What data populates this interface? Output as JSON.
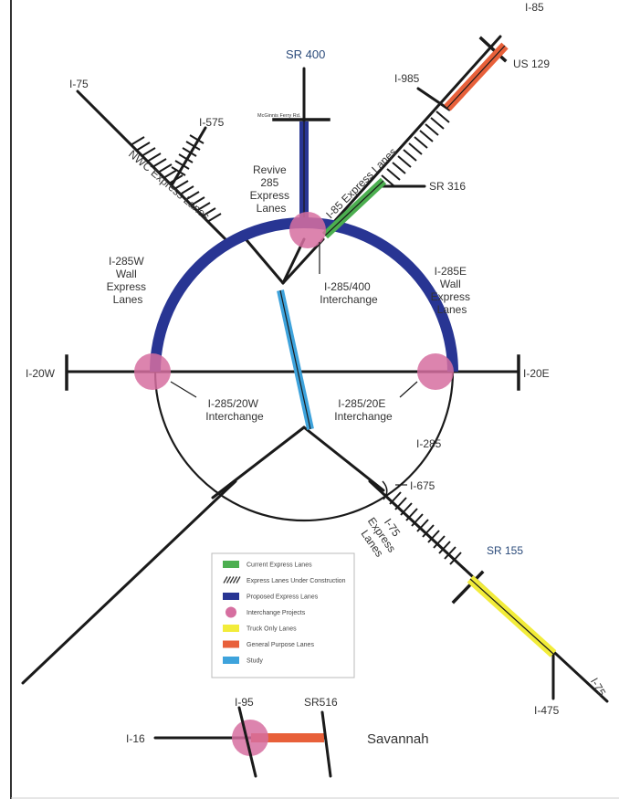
{
  "roads": {
    "i85_top": "I-85",
    "us129": "US 129",
    "i985": "I-985",
    "sr400": "SR 400",
    "mcginnis": "McGinnis Ferry Rd.",
    "i75_nw": "I-75",
    "i575": "I-575",
    "sr316": "SR 316",
    "i20w": "I-20W",
    "i20e": "I-20E",
    "i285": "I-285",
    "i675": "I-675",
    "sr155": "SR 155",
    "i75_se": "I-75",
    "i475": "I-475",
    "i16": "I-16",
    "i95": "I-95",
    "sr516": "SR516",
    "savannah": "Savannah"
  },
  "projects": {
    "nwc_express": "NWC Express Lanes",
    "i85_express": "I-85 Express Lanes",
    "revive_285": [
      "Revive",
      "285",
      "Express",
      "Lanes"
    ],
    "i285w_wall": [
      "I-285W",
      "Wall",
      "Express",
      "Lanes"
    ],
    "i285e_wall": [
      "I-285E",
      "Wall",
      "Express",
      "Lanes"
    ],
    "i285_400": [
      "I-285/400",
      "Interchange"
    ],
    "i285_20w": [
      "I-285/20W",
      "Interchange"
    ],
    "i285_20e": [
      "I-285/20E",
      "Interchange"
    ],
    "i75_express": [
      "I-75",
      "Express",
      "Lanes"
    ]
  },
  "legend": {
    "items": [
      {
        "label": "Current Express Lanes",
        "color": "#4caf50"
      },
      {
        "label": "Express Lanes Under Construction",
        "color": "#333333"
      },
      {
        "label": "Proposed Express Lanes",
        "color": "#283593"
      },
      {
        "label": "Interchange Projects",
        "color": "#d66fa0"
      },
      {
        "label": "Truck Only Lanes",
        "color": "#f2ec3a"
      },
      {
        "label": "General Purpose Lanes",
        "color": "#e8603a"
      },
      {
        "label": "Study",
        "color": "#3ea3dc"
      }
    ]
  },
  "colors": {
    "current_express": "#4caf50",
    "proposed_express": "#283593",
    "interchange": "#d66fa0",
    "truck_only": "#f2ec3a",
    "general_purpose": "#e8603a",
    "study": "#3ea3dc"
  }
}
